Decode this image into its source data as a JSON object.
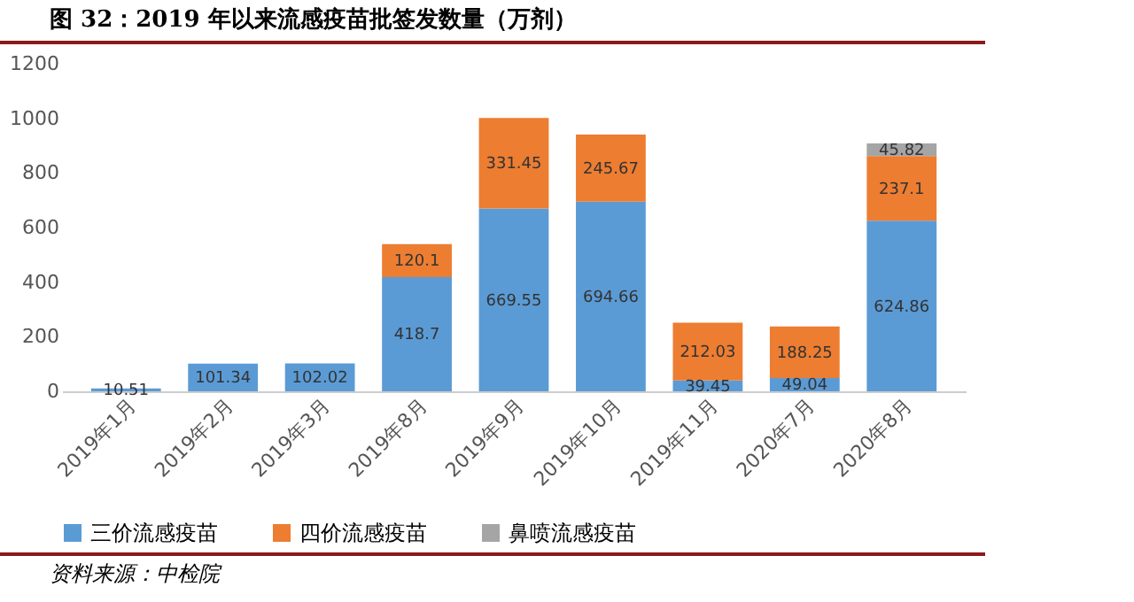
{
  "chart_data": {
    "type": "bar",
    "title": "图 32：2019 年以来流感疫苗批签发数量（万剂）",
    "categories": [
      "2019年1月",
      "2019年2月",
      "2019年3月",
      "2019年8月",
      "2019年9月",
      "2019年10月",
      "2019年11月",
      "2020年7月",
      "2020年8月"
    ],
    "series": [
      {
        "name": "三价流感疫苗",
        "color": "#5b9bd5",
        "values": [
          10.51,
          101.34,
          102.02,
          418.7,
          669.55,
          694.66,
          39.45,
          49.04,
          624.86
        ]
      },
      {
        "name": "四价流感疫苗",
        "color": "#ed7d31",
        "values": [
          null,
          null,
          null,
          120.1,
          331.45,
          245.67,
          212.03,
          188.25,
          237.1
        ]
      },
      {
        "name": "鼻喷流感疫苗",
        "color": "#a5a5a5",
        "values": [
          null,
          null,
          null,
          null,
          null,
          null,
          null,
          null,
          45.82
        ]
      }
    ],
    "stacked": true,
    "data_labels": true,
    "ylim": [
      0,
      1200
    ],
    "yticks": [
      0,
      200,
      400,
      600,
      800,
      1000,
      1200
    ],
    "grid": false,
    "legend": "bottom",
    "annotations": [
      "资料来源：中检院"
    ]
  }
}
